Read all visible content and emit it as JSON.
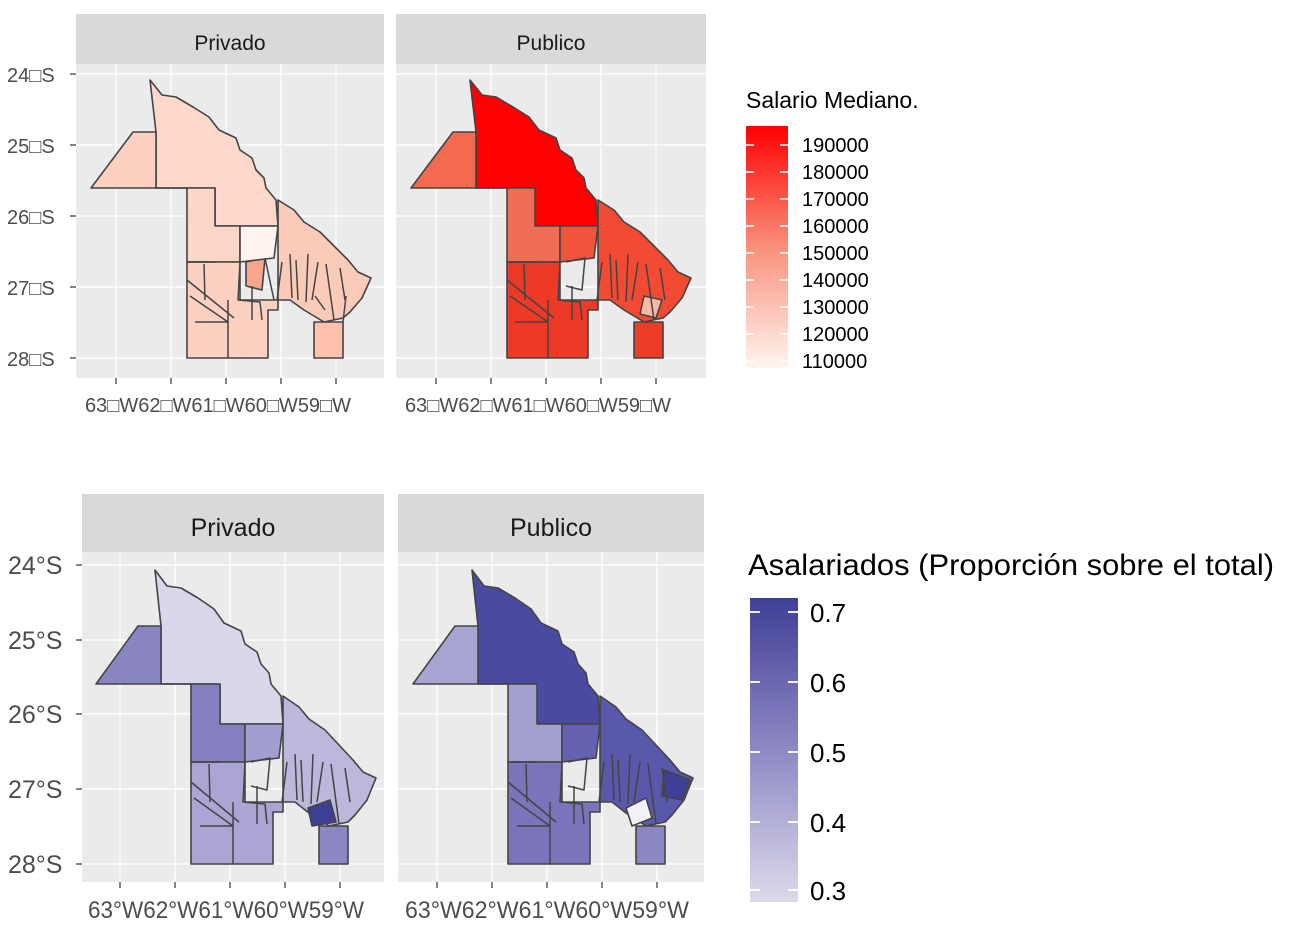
{
  "panels": [
    {
      "id": "salario",
      "facets": [
        "Privado",
        "Publico"
      ],
      "y_ticks": [
        "24□S",
        "25□S",
        "26□S",
        "27□S",
        "28□S"
      ],
      "x_tick_text": "63□W62□W61□W60□W59□W",
      "legend": {
        "title": "Salario Mediano.",
        "labels": [
          "190000",
          "180000",
          "170000",
          "160000",
          "150000",
          "140000",
          "130000",
          "120000",
          "110000"
        ],
        "color_low": "#fff5f0",
        "color_high": "#ff0000"
      }
    },
    {
      "id": "asalariados",
      "facets": [
        "Privado",
        "Publico"
      ],
      "y_ticks": [
        "24°S",
        "25°S",
        "26°S",
        "27°S",
        "28°S"
      ],
      "x_tick_text": "63°W62°W61°W60°W59°W",
      "legend": {
        "title": "Asalariados (Proporción sobre el total)",
        "labels": [
          "0.7",
          "0.6",
          "0.5",
          "0.4",
          "0.3"
        ],
        "color_low": "#dcdaeb",
        "color_high": "#3f3f96"
      }
    }
  ],
  "chart_data": {
    "type": "choropleth",
    "region": "Chaco province departments",
    "x_axis": "longitude",
    "y_axis": "latitude",
    "x_ticks": [
      -63,
      -62,
      -61,
      -60,
      -59
    ],
    "y_ticks": [
      -24,
      -25,
      -26,
      -27,
      -28
    ],
    "series": [
      {
        "name": "Salario Mediano.",
        "range": [
          110000,
          190000
        ],
        "facets": [
          "Privado",
          "Publico"
        ]
      },
      {
        "name": "Asalariados (Proporción sobre el total)",
        "range": [
          0.3,
          0.7
        ],
        "facets": [
          "Privado",
          "Publico"
        ]
      }
    ]
  }
}
